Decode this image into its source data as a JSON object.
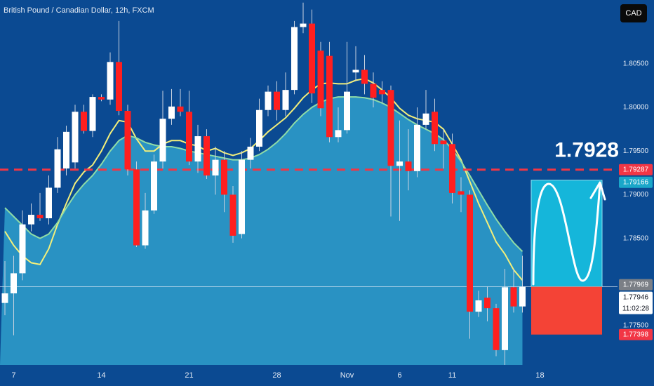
{
  "chart_data": {
    "type": "candlestick",
    "title": "British Pound / Canadian Dollar, 12h, FXCM",
    "currency_button": "CAD",
    "ylim": [
      1.7705,
      1.8123
    ],
    "yticks": [
      {
        "value": 1.805,
        "label": "1.80500"
      },
      {
        "value": 1.8,
        "label": "1.80000"
      },
      {
        "value": 1.795,
        "label": "1.79500"
      },
      {
        "value": 1.79,
        "label": "1.79000"
      },
      {
        "value": 1.785,
        "label": "1.78500"
      },
      {
        "value": 1.775,
        "label": "1.77500"
      }
    ],
    "xlim": [
      -0.56,
      69.84
    ],
    "xticks": [
      {
        "value": 1,
        "label": "7"
      },
      {
        "value": 11,
        "label": "14"
      },
      {
        "value": 21,
        "label": "21"
      },
      {
        "value": 31,
        "label": "28"
      },
      {
        "value": 39,
        "label": "Nov"
      },
      {
        "value": 45,
        "label": "6"
      },
      {
        "value": 51,
        "label": "11"
      },
      {
        "value": 61,
        "label": "18"
      }
    ],
    "grid": false,
    "up_color": "#ffffff",
    "down_color": "#ff1f1f",
    "open": [
      1.7776,
      1.7787,
      1.781,
      1.7866,
      1.7877,
      1.7873,
      1.7908,
      1.793,
      1.7937,
      1.7995,
      1.7973,
      1.8012,
      1.8009,
      1.8052,
      1.7996,
      1.7929,
      1.7842,
      1.7882,
      1.7938,
      1.7987,
      1.8001,
      1.7995,
      1.7938,
      1.7967,
      1.7922,
      1.794,
      1.79,
      1.7855,
      1.794,
      1.7955,
      1.7997,
      1.8018,
      1.7997,
      1.802,
      1.8092,
      1.8096,
      1.8065,
      1.8059,
      1.7966,
      1.7974,
      1.804,
      1.8043,
      1.8027,
      1.802,
      1.802,
      1.7933,
      1.7938,
      1.7927,
      1.798,
      1.7995,
      1.7962,
      1.7958,
      1.7904,
      1.79,
      1.7766,
      1.7782,
      1.777,
      1.7722,
      1.7794,
      1.7772
    ],
    "high": [
      1.7824,
      1.783,
      1.7882,
      1.789,
      1.7902,
      1.7922,
      1.7966,
      1.7979,
      1.8003,
      1.8003,
      1.8015,
      1.8015,
      1.8063,
      1.8099,
      1.8003,
      1.7938,
      1.7902,
      1.7946,
      1.8019,
      1.8021,
      1.8021,
      1.8019,
      1.798,
      1.7975,
      1.7955,
      1.795,
      1.791,
      1.795,
      1.7965,
      1.801,
      1.8025,
      1.803,
      1.804,
      1.8099,
      1.812,
      1.8112,
      1.8075,
      1.8075,
      1.8,
      1.8075,
      1.807,
      1.806,
      1.804,
      1.803,
      1.8025,
      1.7985,
      1.7975,
      1.8,
      1.802,
      1.801,
      1.7975,
      1.797,
      1.792,
      1.7905,
      1.779,
      1.7795,
      1.7775,
      1.7815,
      1.7815,
      1.783
    ],
    "low": [
      1.7762,
      1.7739,
      1.7802,
      1.7858,
      1.787,
      1.7866,
      1.7902,
      1.7922,
      1.793,
      1.797,
      1.7966,
      1.8007,
      1.8003,
      1.7991,
      1.7922,
      1.784,
      1.7838,
      1.7878,
      1.793,
      1.798,
      1.799,
      1.7934,
      1.7925,
      1.7918,
      1.79,
      1.788,
      1.7845,
      1.785,
      1.793,
      1.795,
      1.799,
      1.7985,
      1.799,
      1.8015,
      1.8085,
      1.8005,
      1.799,
      1.796,
      1.796,
      1.797,
      1.803,
      1.8015,
      1.8,
      1.8005,
      1.7875,
      1.787,
      1.7905,
      1.792,
      1.7975,
      1.795,
      1.793,
      1.789,
      1.788,
      1.7735,
      1.776,
      1.7755,
      1.7715,
      1.7705,
      1.7765,
      1.7765
    ],
    "close": [
      1.7787,
      1.781,
      1.7866,
      1.7877,
      1.7873,
      1.7908,
      1.7952,
      1.7972,
      1.7995,
      1.7973,
      1.8012,
      1.8009,
      1.8052,
      1.7996,
      1.7929,
      1.7842,
      1.7882,
      1.7938,
      1.7987,
      1.8001,
      1.7995,
      1.7938,
      1.7967,
      1.7922,
      1.794,
      1.79,
      1.7853,
      1.794,
      1.7955,
      1.7997,
      1.8018,
      1.7997,
      1.802,
      1.8092,
      1.8096,
      1.8016,
      1.7999,
      1.7966,
      1.7974,
      1.8018,
      1.8043,
      1.8027,
      1.8011,
      1.8015,
      1.7933,
      1.7938,
      1.7927,
      1.798,
      1.7993,
      1.7958,
      1.7958,
      1.7902,
      1.79,
      1.7766,
      1.7779,
      1.777,
      1.7722,
      1.7794,
      1.7772,
      1.77946
    ],
    "indicators": [
      {
        "color": "#f3ef7a",
        "values": [
          1.7858,
          1.7842,
          1.783,
          1.7822,
          1.782,
          1.7838,
          1.7866,
          1.789,
          1.7913,
          1.7926,
          1.7934,
          1.795,
          1.797,
          1.7985,
          1.7983,
          1.7964,
          1.795,
          1.795,
          1.7958,
          1.7962,
          1.7962,
          1.7958,
          1.7956,
          1.795,
          1.7953,
          1.7948,
          1.7945,
          1.7948,
          1.7953,
          1.7962,
          1.7972,
          1.798,
          1.7988,
          1.7999,
          1.8011,
          1.802,
          1.8027,
          1.8028,
          1.8027,
          1.8027,
          1.8031,
          1.8033,
          1.8028,
          1.802,
          1.8011,
          1.7999,
          1.7991,
          1.7987,
          1.7985,
          1.7983,
          1.7975,
          1.7958,
          1.794,
          1.7915,
          1.789,
          1.7868,
          1.7846,
          1.7832,
          1.7814,
          1.7802
        ]
      },
      {
        "color": "#8fdca6",
        "fill": "#2f9fcb",
        "values": [
          1.7885,
          1.7875,
          1.7865,
          1.7855,
          1.785,
          1.7855,
          1.7868,
          1.7885,
          1.79,
          1.7912,
          1.7922,
          1.7935,
          1.795,
          1.7962,
          1.7968,
          1.7965,
          1.796,
          1.7957,
          1.7955,
          1.7955,
          1.7953,
          1.795,
          1.7948,
          1.7946,
          1.7944,
          1.7942,
          1.794,
          1.794,
          1.7942,
          1.7946,
          1.7952,
          1.796,
          1.797,
          1.7982,
          1.7992,
          1.8,
          1.8006,
          1.801,
          1.8012,
          1.8012,
          1.8012,
          1.8011,
          1.8009,
          1.8005,
          1.8,
          1.7993,
          1.7986,
          1.798,
          1.7975,
          1.797,
          1.7963,
          1.7952,
          1.7938,
          1.7922,
          1.7905,
          1.7888,
          1.7872,
          1.7858,
          1.7845,
          1.7835
        ]
      }
    ],
    "price_labels": [
      {
        "value": 1.79287,
        "label": "1.79287",
        "color": "#f23645"
      },
      {
        "value": 1.79166,
        "label": "1.79166",
        "color": "#1aa7c9"
      },
      {
        "value": 1.77969,
        "label": "1.77969",
        "color": "#7b7f86"
      },
      {
        "value": 1.77946,
        "label": "1.77946",
        "color": "#ffffff",
        "countdown": "11:02:28"
      },
      {
        "value": 1.77398,
        "label": "1.77398",
        "color": "#f23645"
      }
    ],
    "annotation": "1.7928"
  }
}
